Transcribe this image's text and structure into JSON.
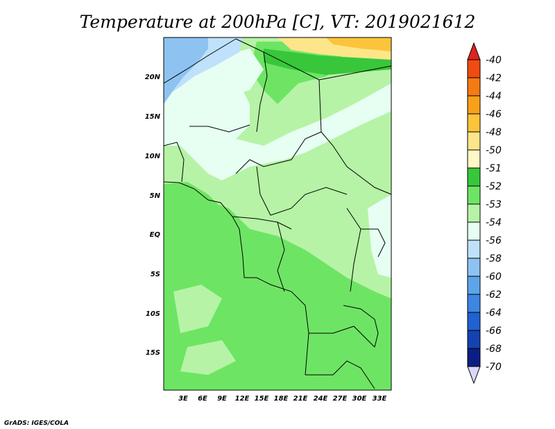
{
  "title": "Temperature at 200hPa [C], VT: 2019021612",
  "credit": "GrADS: IGES/COLA",
  "axes": {
    "lat_labels": [
      "20N",
      "15N",
      "10N",
      "5N",
      "EQ",
      "5S",
      "10S",
      "15S"
    ],
    "lon_labels": [
      "3E",
      "6E",
      "9E",
      "12E",
      "15E",
      "18E",
      "21E",
      "24E",
      "27E",
      "30E",
      "33E"
    ]
  },
  "colorbar": {
    "labels": [
      "-40",
      "-42",
      "-44",
      "-46",
      "-48",
      "-50",
      "-51",
      "-52",
      "-53",
      "-54",
      "-56",
      "-58",
      "-60",
      "-62",
      "-64",
      "-66",
      "-68",
      "-70"
    ],
    "colors": [
      "#e0231f",
      "#f04b12",
      "#f57a12",
      "#f9a01b",
      "#fbc43a",
      "#fde68a",
      "#fdf8c5",
      "#38c73a",
      "#6ee464",
      "#b6f3a6",
      "#e6fff2",
      "#bfe1fb",
      "#8ec3f1",
      "#5ea4e9",
      "#3d86e2",
      "#2062d1",
      "#1443b1",
      "#0b1f83",
      "#d9d8f8"
    ]
  }
}
